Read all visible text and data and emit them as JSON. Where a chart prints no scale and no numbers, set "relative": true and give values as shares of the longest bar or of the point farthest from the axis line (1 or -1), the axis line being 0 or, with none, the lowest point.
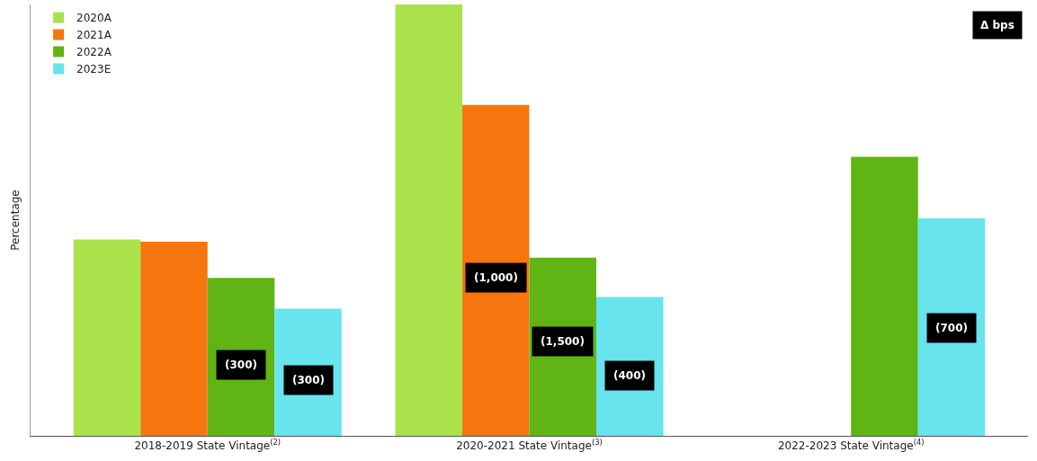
{
  "chart_data": {
    "type": "bar",
    "relative": true,
    "ylabel": "Percentage",
    "categories": [
      "2018-2019 State Vintage$^{(2)}$",
      "2020-2021 State Vintage$^{(3)}$",
      "2022-2023 State Vintage$^{(4)}$"
    ],
    "series": [
      {
        "name": "2020A",
        "color": "#a9e24a",
        "values": [
          0.455,
          1.0,
          null
        ]
      },
      {
        "name": "2021A",
        "color": "#f5760f",
        "values": [
          0.45,
          0.767,
          null
        ]
      },
      {
        "name": "2022A",
        "color": "#60b414",
        "values": [
          0.366,
          0.413,
          0.647
        ]
      },
      {
        "name": "2023E",
        "color": "#67e4ee",
        "values": [
          0.295,
          0.322,
          0.504
        ]
      }
    ],
    "annotations": [
      "Δ bps",
      "(300)",
      "(300)",
      "(1,000)",
      "(1,500)",
      "(400)",
      "(700)"
    ],
    "legend": "top left"
  }
}
